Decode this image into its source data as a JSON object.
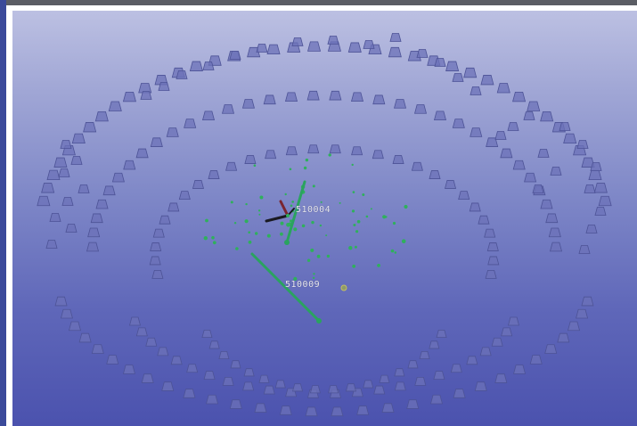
{
  "scene": {
    "labels": [
      {
        "id": "node-label-1",
        "text": "510004"
      },
      {
        "id": "node-label-2",
        "text": "510009"
      }
    ],
    "colors": {
      "marker": "#6c72b8",
      "marker_stroke": "#4d5396",
      "point": "#2fb05c",
      "link": "#2aa35f",
      "axis_black": "#1a1a22",
      "axis_red": "#7a2531"
    },
    "icons": [
      "camera-marker-icon",
      "link-line-icon",
      "coordinate-axes-icon",
      "point-cloud-icon"
    ]
  }
}
